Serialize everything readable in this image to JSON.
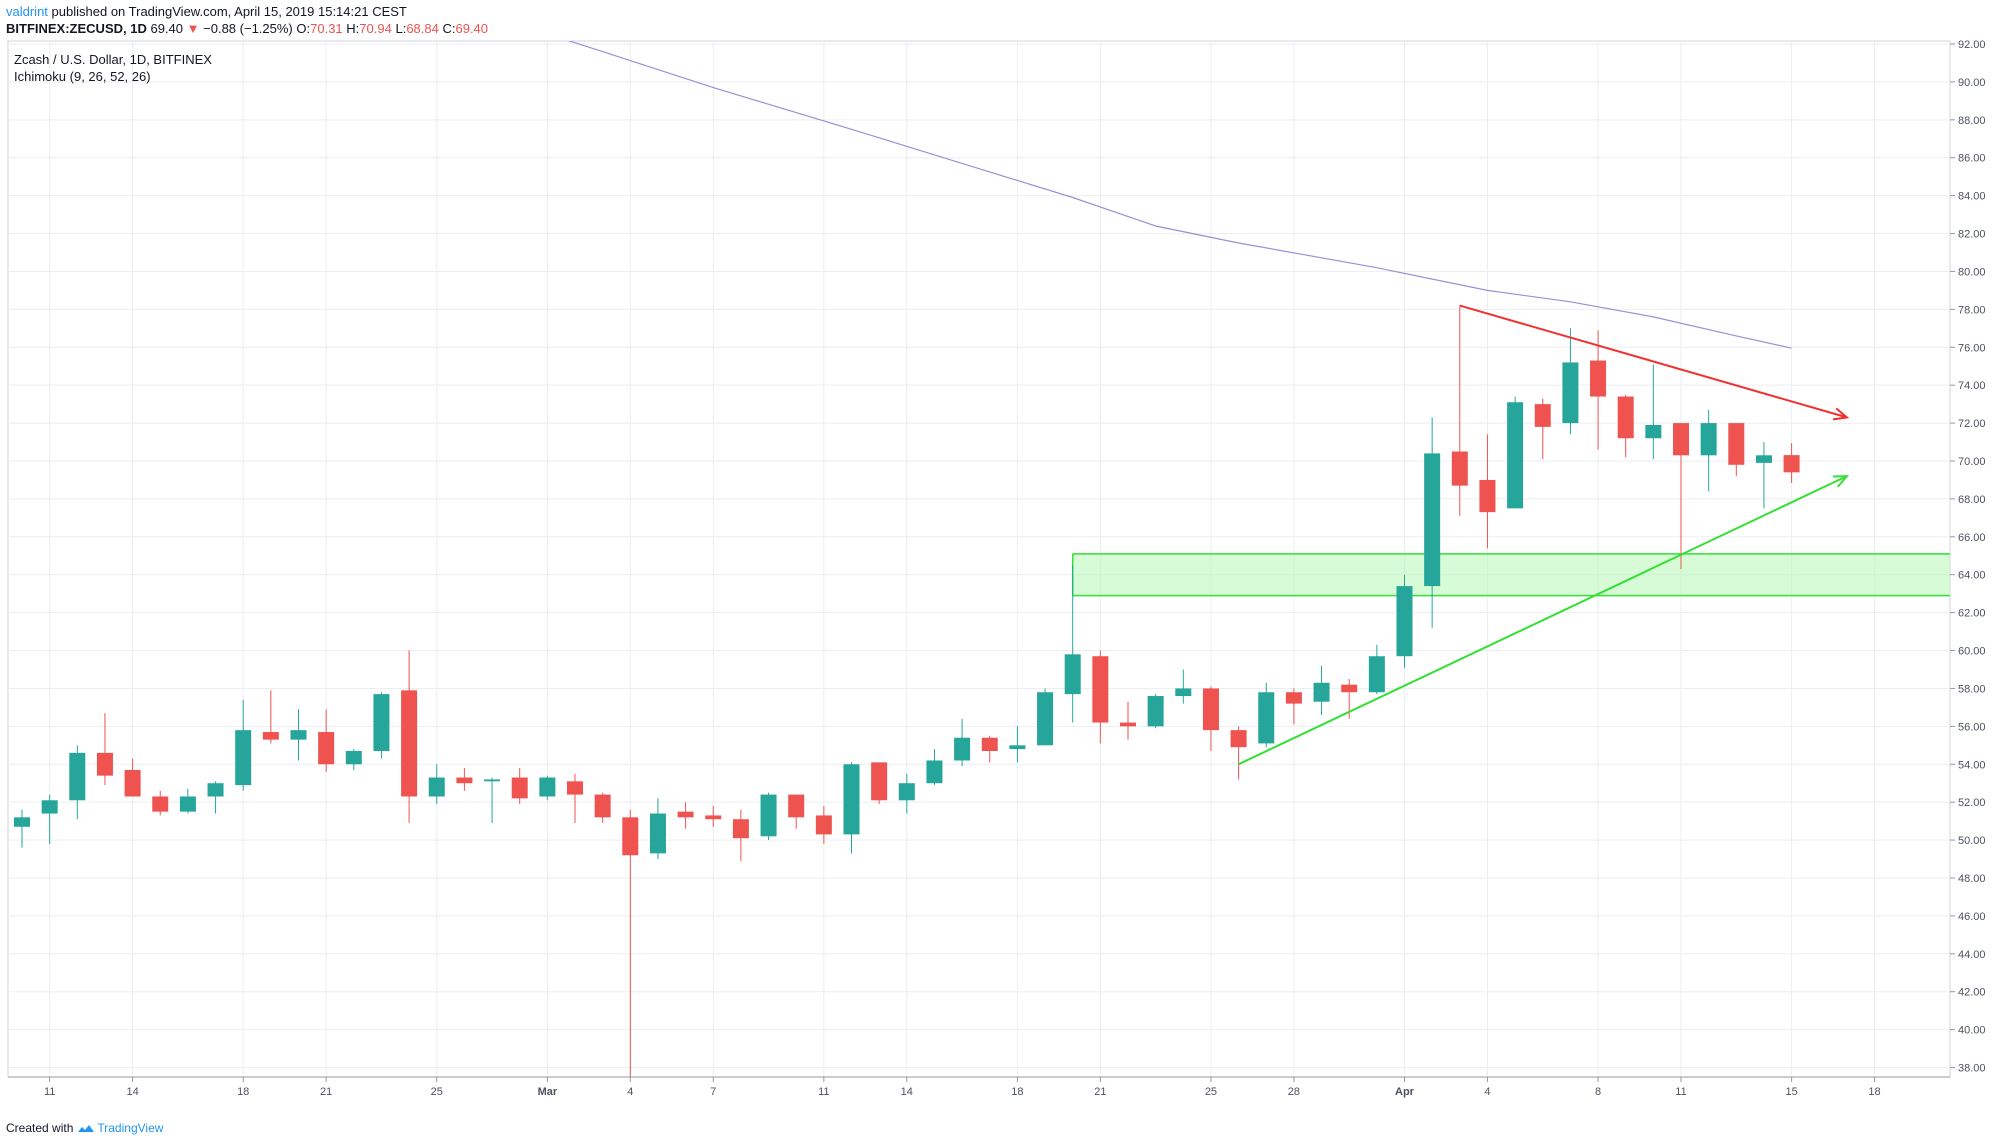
{
  "header": {
    "username": "valdrint",
    "published_text": "published on TradingView.com, April 15, 2019 15:14:21 CEST"
  },
  "symbol_line": {
    "symbol": "BITFINEX:ZECUSD, 1D",
    "last": "69.40",
    "change": "−0.88 (−1.25%)",
    "open_label": "O:",
    "open": "70.31",
    "high_label": "H:",
    "high": "70.94",
    "low_label": "L:",
    "low": "68.84",
    "close_label": "C:",
    "close": "69.40"
  },
  "footer": {
    "created_with": "Created with",
    "brand": "TradingView"
  },
  "colors": {
    "up": "#26a69a",
    "down": "#ef5350",
    "ichimoku_line": "#9c8fd9",
    "resistance_line": "#f23030",
    "support_line": "#33e033",
    "zone_fill": "#b4f7b4",
    "zone_border": "#33e033",
    "grid": "#ebeef2",
    "user": "#2196f3"
  },
  "chart_data": {
    "type": "candlestick",
    "title": "Zcash / U.S. Dollar, 1D, BITFINEX",
    "indicator": "Ichimoku (9, 26, 52, 26)",
    "y_range": [
      37.5,
      92.0
    ],
    "y_ticks": [
      "38.00",
      "40.00",
      "42.00",
      "44.00",
      "46.00",
      "48.00",
      "50.00",
      "52.00",
      "54.00",
      "56.00",
      "58.00",
      "60.00",
      "62.00",
      "64.00",
      "66.00",
      "68.00",
      "70.00",
      "72.00",
      "74.00",
      "76.00",
      "78.00",
      "80.00",
      "82.00",
      "84.00",
      "86.00",
      "88.00",
      "90.00",
      "92.00"
    ],
    "x_range": [
      "2019-02-10",
      "2019-04-20"
    ],
    "x_ticks": [
      {
        "date": "2019-02-11",
        "label": "11"
      },
      {
        "date": "2019-02-14",
        "label": "14"
      },
      {
        "date": "2019-02-18",
        "label": "18"
      },
      {
        "date": "2019-02-21",
        "label": "21"
      },
      {
        "date": "2019-02-25",
        "label": "25"
      },
      {
        "date": "2019-03-01",
        "label": "Mar",
        "bold": true
      },
      {
        "date": "2019-03-04",
        "label": "4"
      },
      {
        "date": "2019-03-07",
        "label": "7"
      },
      {
        "date": "2019-03-11",
        "label": "11"
      },
      {
        "date": "2019-03-14",
        "label": "14"
      },
      {
        "date": "2019-03-18",
        "label": "18"
      },
      {
        "date": "2019-03-21",
        "label": "21"
      },
      {
        "date": "2019-03-25",
        "label": "25"
      },
      {
        "date": "2019-03-28",
        "label": "28"
      },
      {
        "date": "2019-04-01",
        "label": "Apr",
        "bold": true
      },
      {
        "date": "2019-04-04",
        "label": "4"
      },
      {
        "date": "2019-04-08",
        "label": "8"
      },
      {
        "date": "2019-04-11",
        "label": "11"
      },
      {
        "date": "2019-04-15",
        "label": "15"
      },
      {
        "date": "2019-04-18",
        "label": "18"
      }
    ],
    "candles": [
      {
        "date": "2019-02-10",
        "o": 50.7,
        "h": 51.6,
        "l": 49.6,
        "c": 51.2
      },
      {
        "date": "2019-02-11",
        "o": 51.4,
        "h": 52.4,
        "l": 49.8,
        "c": 52.1
      },
      {
        "date": "2019-02-12",
        "o": 52.1,
        "h": 55.0,
        "l": 51.1,
        "c": 54.6
      },
      {
        "date": "2019-02-13",
        "o": 54.6,
        "h": 56.7,
        "l": 52.9,
        "c": 53.4
      },
      {
        "date": "2019-02-14",
        "o": 53.7,
        "h": 54.3,
        "l": 52.3,
        "c": 52.3
      },
      {
        "date": "2019-02-15",
        "o": 52.3,
        "h": 52.6,
        "l": 51.3,
        "c": 51.5
      },
      {
        "date": "2019-02-16",
        "o": 51.5,
        "h": 52.7,
        "l": 51.4,
        "c": 52.3
      },
      {
        "date": "2019-02-17",
        "o": 52.3,
        "h": 53.1,
        "l": 51.4,
        "c": 53.0
      },
      {
        "date": "2019-02-18",
        "o": 52.9,
        "h": 57.4,
        "l": 52.6,
        "c": 55.8
      },
      {
        "date": "2019-02-19",
        "o": 55.7,
        "h": 57.9,
        "l": 55.1,
        "c": 55.3
      },
      {
        "date": "2019-02-20",
        "o": 55.3,
        "h": 56.9,
        "l": 54.2,
        "c": 55.8
      },
      {
        "date": "2019-02-21",
        "o": 55.7,
        "h": 56.9,
        "l": 53.6,
        "c": 54.0
      },
      {
        "date": "2019-02-22",
        "o": 54.0,
        "h": 54.8,
        "l": 53.7,
        "c": 54.7
      },
      {
        "date": "2019-02-23",
        "o": 54.7,
        "h": 57.8,
        "l": 54.3,
        "c": 57.7
      },
      {
        "date": "2019-02-24",
        "o": 57.9,
        "h": 60.0,
        "l": 50.9,
        "c": 52.3
      },
      {
        "date": "2019-02-25",
        "o": 52.3,
        "h": 54.0,
        "l": 51.9,
        "c": 53.3
      },
      {
        "date": "2019-02-26",
        "o": 53.3,
        "h": 53.8,
        "l": 52.6,
        "c": 53.0
      },
      {
        "date": "2019-02-27",
        "o": 53.1,
        "h": 53.3,
        "l": 50.9,
        "c": 53.2
      },
      {
        "date": "2019-02-28",
        "o": 53.3,
        "h": 53.8,
        "l": 51.9,
        "c": 52.2
      },
      {
        "date": "2019-03-01",
        "o": 52.3,
        "h": 53.4,
        "l": 52.1,
        "c": 53.3
      },
      {
        "date": "2019-03-02",
        "o": 53.1,
        "h": 53.5,
        "l": 50.9,
        "c": 52.4
      },
      {
        "date": "2019-03-03",
        "o": 52.4,
        "h": 52.5,
        "l": 50.9,
        "c": 51.2
      },
      {
        "date": "2019-03-04",
        "o": 51.2,
        "h": 51.6,
        "l": 37.5,
        "c": 49.2
      },
      {
        "date": "2019-03-05",
        "o": 49.3,
        "h": 52.2,
        "l": 49.0,
        "c": 51.4
      },
      {
        "date": "2019-03-06",
        "o": 51.5,
        "h": 52.0,
        "l": 50.6,
        "c": 51.2
      },
      {
        "date": "2019-03-07",
        "o": 51.3,
        "h": 51.8,
        "l": 50.7,
        "c": 51.1
      },
      {
        "date": "2019-03-08",
        "o": 51.1,
        "h": 51.6,
        "l": 48.9,
        "c": 50.1
      },
      {
        "date": "2019-03-09",
        "o": 50.2,
        "h": 52.5,
        "l": 50.0,
        "c": 52.4
      },
      {
        "date": "2019-03-10",
        "o": 52.4,
        "h": 52.4,
        "l": 50.6,
        "c": 51.2
      },
      {
        "date": "2019-03-11",
        "o": 51.3,
        "h": 51.8,
        "l": 49.8,
        "c": 50.3
      },
      {
        "date": "2019-03-12",
        "o": 50.3,
        "h": 54.1,
        "l": 49.3,
        "c": 54.0
      },
      {
        "date": "2019-03-13",
        "o": 54.1,
        "h": 54.1,
        "l": 51.9,
        "c": 52.1
      },
      {
        "date": "2019-03-14",
        "o": 52.1,
        "h": 53.5,
        "l": 51.4,
        "c": 53.0
      },
      {
        "date": "2019-03-15",
        "o": 53.0,
        "h": 54.8,
        "l": 52.9,
        "c": 54.2
      },
      {
        "date": "2019-03-16",
        "o": 54.2,
        "h": 56.4,
        "l": 53.9,
        "c": 55.4
      },
      {
        "date": "2019-03-17",
        "o": 55.4,
        "h": 55.5,
        "l": 54.1,
        "c": 54.7
      },
      {
        "date": "2019-03-18",
        "o": 54.8,
        "h": 56.0,
        "l": 54.1,
        "c": 55.0
      },
      {
        "date": "2019-03-19",
        "o": 55.0,
        "h": 58.0,
        "l": 55.0,
        "c": 57.8
      },
      {
        "date": "2019-03-20",
        "o": 57.7,
        "h": 64.5,
        "l": 56.2,
        "c": 59.8
      },
      {
        "date": "2019-03-21",
        "o": 59.7,
        "h": 60.0,
        "l": 55.1,
        "c": 56.2
      },
      {
        "date": "2019-03-22",
        "o": 56.2,
        "h": 57.3,
        "l": 55.3,
        "c": 56.0
      },
      {
        "date": "2019-03-23",
        "o": 56.0,
        "h": 57.7,
        "l": 55.9,
        "c": 57.6
      },
      {
        "date": "2019-03-24",
        "o": 57.6,
        "h": 59.0,
        "l": 57.2,
        "c": 58.0
      },
      {
        "date": "2019-03-25",
        "o": 58.0,
        "h": 58.1,
        "l": 54.7,
        "c": 55.8
      },
      {
        "date": "2019-03-26",
        "o": 55.8,
        "h": 56.0,
        "l": 53.2,
        "c": 54.9
      },
      {
        "date": "2019-03-27",
        "o": 55.1,
        "h": 58.3,
        "l": 54.9,
        "c": 57.8
      },
      {
        "date": "2019-03-28",
        "o": 57.8,
        "h": 58.0,
        "l": 56.1,
        "c": 57.2
      },
      {
        "date": "2019-03-29",
        "o": 57.3,
        "h": 59.2,
        "l": 56.6,
        "c": 58.3
      },
      {
        "date": "2019-03-30",
        "o": 58.2,
        "h": 58.5,
        "l": 56.4,
        "c": 57.8
      },
      {
        "date": "2019-03-31",
        "o": 57.8,
        "h": 60.3,
        "l": 57.7,
        "c": 59.7
      },
      {
        "date": "2019-04-01",
        "o": 59.7,
        "h": 64.0,
        "l": 59.1,
        "c": 63.4
      },
      {
        "date": "2019-04-02",
        "o": 63.4,
        "h": 72.3,
        "l": 61.2,
        "c": 70.4
      },
      {
        "date": "2019-04-03",
        "o": 70.5,
        "h": 78.2,
        "l": 67.1,
        "c": 68.7
      },
      {
        "date": "2019-04-04",
        "o": 69.0,
        "h": 71.4,
        "l": 65.4,
        "c": 67.3
      },
      {
        "date": "2019-04-05",
        "o": 67.5,
        "h": 73.4,
        "l": 67.5,
        "c": 73.1
      },
      {
        "date": "2019-04-06",
        "o": 73.0,
        "h": 73.3,
        "l": 70.1,
        "c": 71.8
      },
      {
        "date": "2019-04-07",
        "o": 72.0,
        "h": 77.0,
        "l": 71.4,
        "c": 75.2
      },
      {
        "date": "2019-04-08",
        "o": 75.3,
        "h": 76.9,
        "l": 70.6,
        "c": 73.4
      },
      {
        "date": "2019-04-09",
        "o": 73.4,
        "h": 73.5,
        "l": 70.2,
        "c": 71.2
      },
      {
        "date": "2019-04-10",
        "o": 71.2,
        "h": 75.1,
        "l": 70.1,
        "c": 71.9
      },
      {
        "date": "2019-04-11",
        "o": 72.0,
        "h": 72.0,
        "l": 64.3,
        "c": 70.3
      },
      {
        "date": "2019-04-12",
        "o": 70.3,
        "h": 72.7,
        "l": 68.4,
        "c": 72.0
      },
      {
        "date": "2019-04-13",
        "o": 72.0,
        "h": 72.0,
        "l": 69.2,
        "c": 69.8
      },
      {
        "date": "2019-04-14",
        "o": 69.9,
        "h": 71.0,
        "l": 67.5,
        "c": 70.3
      },
      {
        "date": "2019-04-15",
        "o": 70.31,
        "h": 70.94,
        "l": 68.84,
        "c": 69.4
      }
    ],
    "ichimoku_line": [
      {
        "date": "2019-02-28",
        "v": 93.0
      },
      {
        "date": "2019-03-03",
        "v": 91.6
      },
      {
        "date": "2019-03-07",
        "v": 89.7
      },
      {
        "date": "2019-03-12",
        "v": 87.5
      },
      {
        "date": "2019-03-16",
        "v": 85.7
      },
      {
        "date": "2019-03-20",
        "v": 83.9
      },
      {
        "date": "2019-03-23",
        "v": 82.4
      },
      {
        "date": "2019-03-26",
        "v": 81.5
      },
      {
        "date": "2019-03-31",
        "v": 80.2
      },
      {
        "date": "2019-04-04",
        "v": 79.0
      },
      {
        "date": "2019-04-07",
        "v": 78.4
      },
      {
        "date": "2019-04-10",
        "v": 77.6
      },
      {
        "date": "2019-04-13",
        "v": 76.6
      },
      {
        "date": "2019-04-15",
        "v": 75.95
      }
    ],
    "resistance_line": {
      "from": {
        "date": "2019-04-03",
        "v": 78.2
      },
      "to": {
        "date": "2019-04-17",
        "v": 72.3
      }
    },
    "support_line": {
      "from": {
        "date": "2019-03-26",
        "v": 54.0
      },
      "to": {
        "date": "2019-04-17",
        "v": 69.2
      }
    },
    "support_zone": {
      "from_date": "2019-03-20",
      "y_low": 62.9,
      "y_high": 65.1
    }
  }
}
